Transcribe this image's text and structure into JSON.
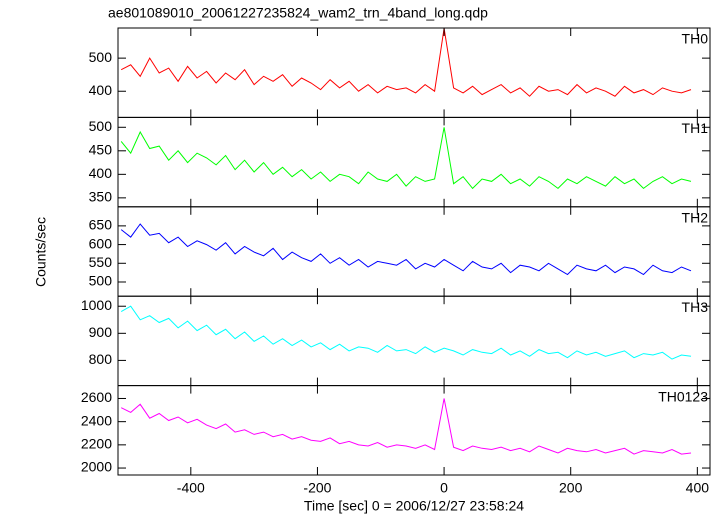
{
  "chart_data": {
    "type": "line",
    "title": "ae801089010_20061227235824_wam2_trn_4band_long.qdp",
    "x_label": "Time [sec] 0 = 2006/12/27 23:58:24",
    "y_label": "Counts/sec",
    "xlim": [
      -515,
      420
    ],
    "xticks": [
      -400,
      -200,
      0,
      200,
      400
    ],
    "x": [
      -510,
      -495,
      -480,
      -465,
      -450,
      -435,
      -420,
      -405,
      -390,
      -375,
      -360,
      -345,
      -330,
      -315,
      -300,
      -285,
      -270,
      -255,
      -240,
      -225,
      -210,
      -195,
      -180,
      -165,
      -150,
      -135,
      -120,
      -105,
      -90,
      -75,
      -60,
      -45,
      -30,
      -15,
      0,
      15,
      30,
      45,
      60,
      75,
      90,
      105,
      120,
      135,
      150,
      165,
      180,
      195,
      210,
      225,
      240,
      255,
      270,
      285,
      300,
      315,
      330,
      345,
      360,
      375,
      390
    ],
    "series": [
      {
        "name": "TH0",
        "color": "#ff0000",
        "ylim": [
          321,
          591
        ],
        "yticks": [
          400,
          500
        ],
        "values": [
          465,
          480,
          445,
          500,
          455,
          470,
          430,
          475,
          440,
          460,
          425,
          455,
          435,
          465,
          420,
          445,
          430,
          450,
          415,
          440,
          425,
          405,
          435,
          410,
          430,
          400,
          420,
          395,
          415,
          405,
          410,
          395,
          420,
          400,
          590,
          410,
          395,
          415,
          390,
          405,
          420,
          395,
          410,
          385,
          415,
          400,
          405,
          390,
          420,
          395,
          410,
          400,
          385,
          415,
          395,
          405,
          390,
          410,
          400,
          395,
          405
        ]
      },
      {
        "name": "TH1",
        "color": "#00ff00",
        "ylim": [
          331,
          521
        ],
        "yticks": [
          350,
          400,
          450,
          500
        ],
        "values": [
          470,
          445,
          490,
          455,
          460,
          430,
          450,
          425,
          445,
          435,
          420,
          440,
          410,
          430,
          405,
          425,
          400,
          415,
          395,
          410,
          390,
          405,
          385,
          400,
          395,
          380,
          405,
          390,
          385,
          400,
          375,
          395,
          385,
          390,
          500,
          380,
          395,
          370,
          390,
          385,
          400,
          380,
          390,
          375,
          395,
          385,
          370,
          390,
          380,
          395,
          385,
          375,
          395,
          380,
          390,
          370,
          385,
          395,
          380,
          390,
          385
        ]
      },
      {
        "name": "TH2",
        "color": "#0000ff",
        "ylim": [
          462,
          701
        ],
        "yticks": [
          500,
          550,
          600,
          650
        ],
        "values": [
          640,
          620,
          655,
          625,
          630,
          605,
          620,
          595,
          610,
          600,
          585,
          605,
          575,
          595,
          580,
          570,
          590,
          560,
          580,
          565,
          555,
          575,
          550,
          565,
          545,
          560,
          540,
          555,
          550,
          545,
          560,
          535,
          550,
          540,
          560,
          545,
          530,
          555,
          540,
          535,
          550,
          525,
          545,
          540,
          530,
          550,
          535,
          520,
          545,
          535,
          530,
          545,
          525,
          540,
          535,
          520,
          545,
          530,
          525,
          540,
          530
        ]
      },
      {
        "name": "TH3",
        "color": "#00ffff",
        "ylim": [
          707,
          1037
        ],
        "yticks": [
          800,
          900,
          1000
        ],
        "values": [
          980,
          1000,
          950,
          965,
          940,
          955,
          920,
          945,
          910,
          930,
          895,
          915,
          880,
          905,
          870,
          890,
          860,
          880,
          855,
          875,
          850,
          865,
          840,
          860,
          835,
          850,
          845,
          830,
          855,
          835,
          840,
          825,
          850,
          830,
          845,
          835,
          820,
          840,
          830,
          825,
          845,
          820,
          835,
          815,
          840,
          825,
          830,
          810,
          835,
          820,
          830,
          815,
          825,
          835,
          810,
          825,
          820,
          830,
          805,
          820,
          815
        ]
      },
      {
        "name": "TH0123",
        "color": "#ff00ff",
        "ylim": [
          1940,
          2711
        ],
        "yticks": [
          2000,
          2200,
          2400,
          2600
        ],
        "values": [
          2520,
          2480,
          2550,
          2430,
          2470,
          2410,
          2440,
          2390,
          2420,
          2370,
          2340,
          2380,
          2310,
          2330,
          2290,
          2310,
          2270,
          2290,
          2250,
          2270,
          2240,
          2230,
          2260,
          2210,
          2230,
          2200,
          2190,
          2220,
          2180,
          2200,
          2190,
          2170,
          2200,
          2160,
          2600,
          2180,
          2150,
          2190,
          2170,
          2160,
          2180,
          2150,
          2170,
          2140,
          2190,
          2160,
          2130,
          2170,
          2150,
          2140,
          2160,
          2130,
          2150,
          2170,
          2120,
          2150,
          2140,
          2130,
          2160,
          2120,
          2130
        ]
      }
    ]
  }
}
